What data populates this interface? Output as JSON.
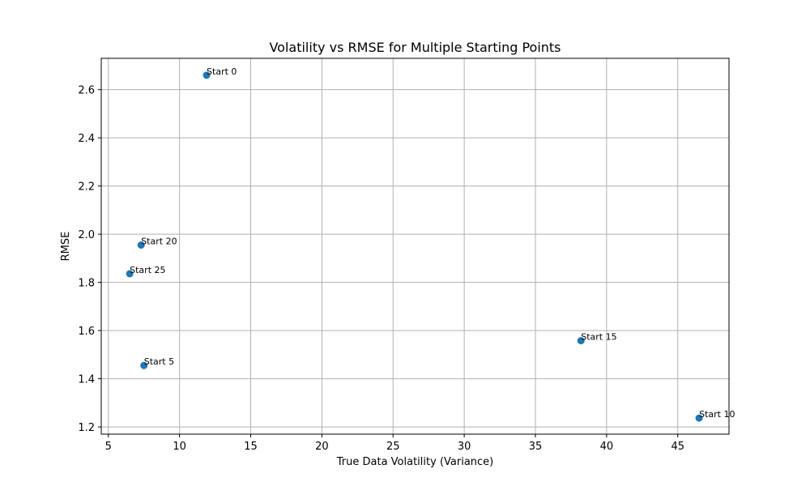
{
  "chart_data": {
    "type": "scatter",
    "title": "Volatility vs RMSE for Multiple Starting Points",
    "xlabel": "True Data Volatility (Variance)",
    "ylabel": "RMSE",
    "xlim": [
      4.5,
      48.6
    ],
    "ylim": [
      1.17,
      2.73
    ],
    "xticks": [
      5,
      10,
      15,
      20,
      25,
      30,
      35,
      40,
      45
    ],
    "yticks": [
      1.2,
      1.4,
      1.6,
      1.8,
      2.0,
      2.2,
      2.4,
      2.6
    ],
    "ytick_labels": [
      "1.2",
      "1.4",
      "1.6",
      "1.8",
      "2.0",
      "2.2",
      "2.4",
      "2.6"
    ],
    "grid": true,
    "color": "#1f77b4",
    "points": [
      {
        "label": "Start 0",
        "x": 11.9,
        "y": 2.66
      },
      {
        "label": "Start 5",
        "x": 7.5,
        "y": 1.455
      },
      {
        "label": "Start 10",
        "x": 46.5,
        "y": 1.237
      },
      {
        "label": "Start 15",
        "x": 38.2,
        "y": 1.558
      },
      {
        "label": "Start 20",
        "x": 7.3,
        "y": 1.955
      },
      {
        "label": "Start 25",
        "x": 6.5,
        "y": 1.836
      }
    ]
  }
}
